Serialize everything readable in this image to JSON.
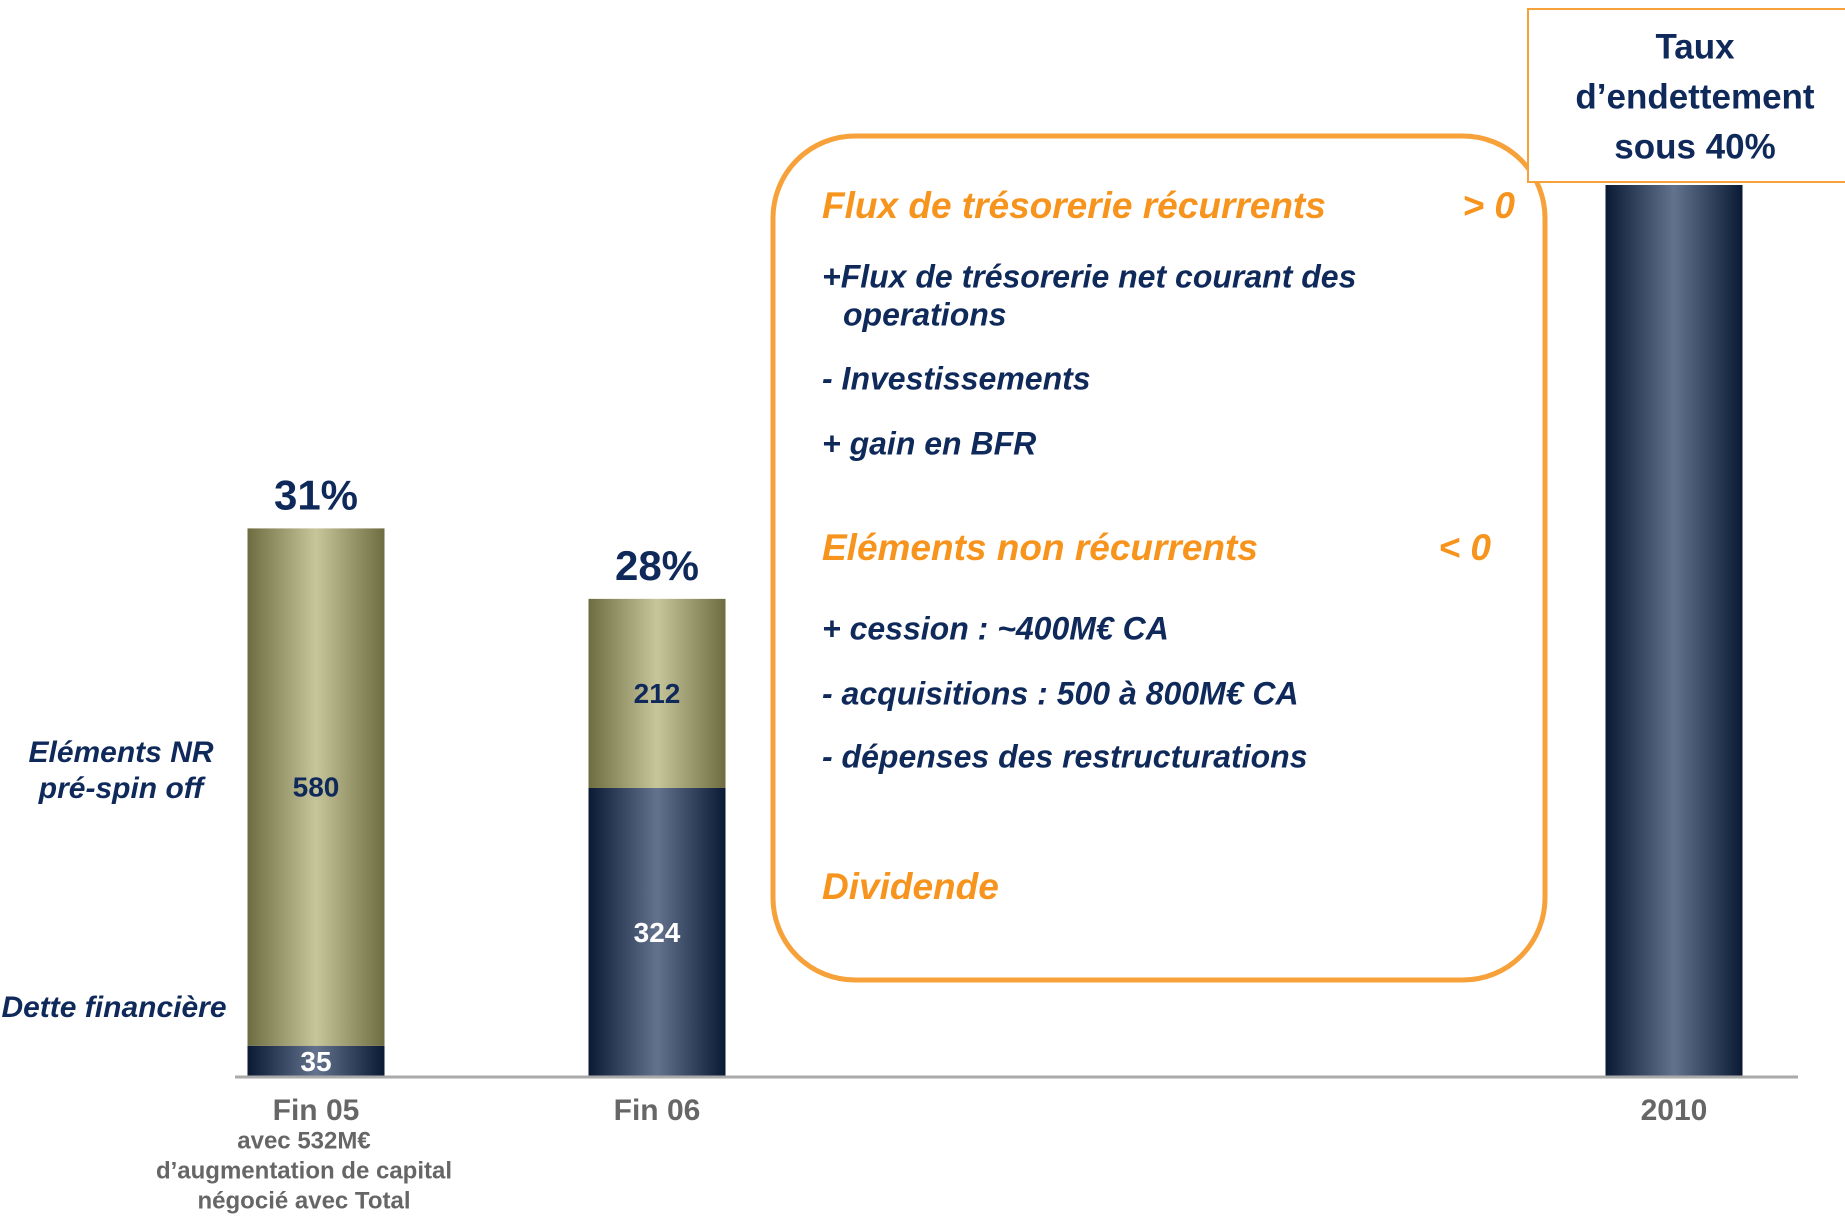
{
  "chart_data": {
    "type": "stacked_bar",
    "categories": [
      "Fin 05",
      "Fin 06",
      "2010"
    ],
    "category_notes": [
      "avec 532M€",
      "d’augmentation de capital",
      "négocié avec Total"
    ],
    "series": [
      {
        "name": "Dette financière",
        "color": "#0f2750",
        "label_color": "#ffffff",
        "values": [
          35,
          324,
          1000
        ],
        "value_labels": [
          "35",
          "324",
          null
        ]
      },
      {
        "name": "Eléments NR pré-spin off",
        "color": "#a9a765",
        "label_color": "#0f2a5a",
        "values": [
          580,
          212,
          null
        ],
        "value_labels": [
          "580",
          "212",
          null
        ]
      }
    ],
    "ratio_labels": [
      "31%",
      "28%",
      null
    ],
    "ylim": [
      0,
      1000
    ]
  },
  "callout": {
    "lines": [
      "Taux",
      "d’endettement",
      "sous 40%"
    ]
  },
  "box": {
    "sections": [
      {
        "heading": "Flux de trésorerie récurrents",
        "sign": "> 0",
        "lines": [
          "+Flux de trésorerie net courant des",
          "operations",
          "- Investissements",
          "+ gain en BFR"
        ]
      },
      {
        "heading": "Eléments non récurrents",
        "sign": "< 0",
        "lines": [
          "+ cession : ~400M€ CA",
          "- acquisitions : 500 à 800M€ CA",
          "- dépenses des restructurations"
        ]
      },
      {
        "heading": "Dividende"
      }
    ]
  }
}
